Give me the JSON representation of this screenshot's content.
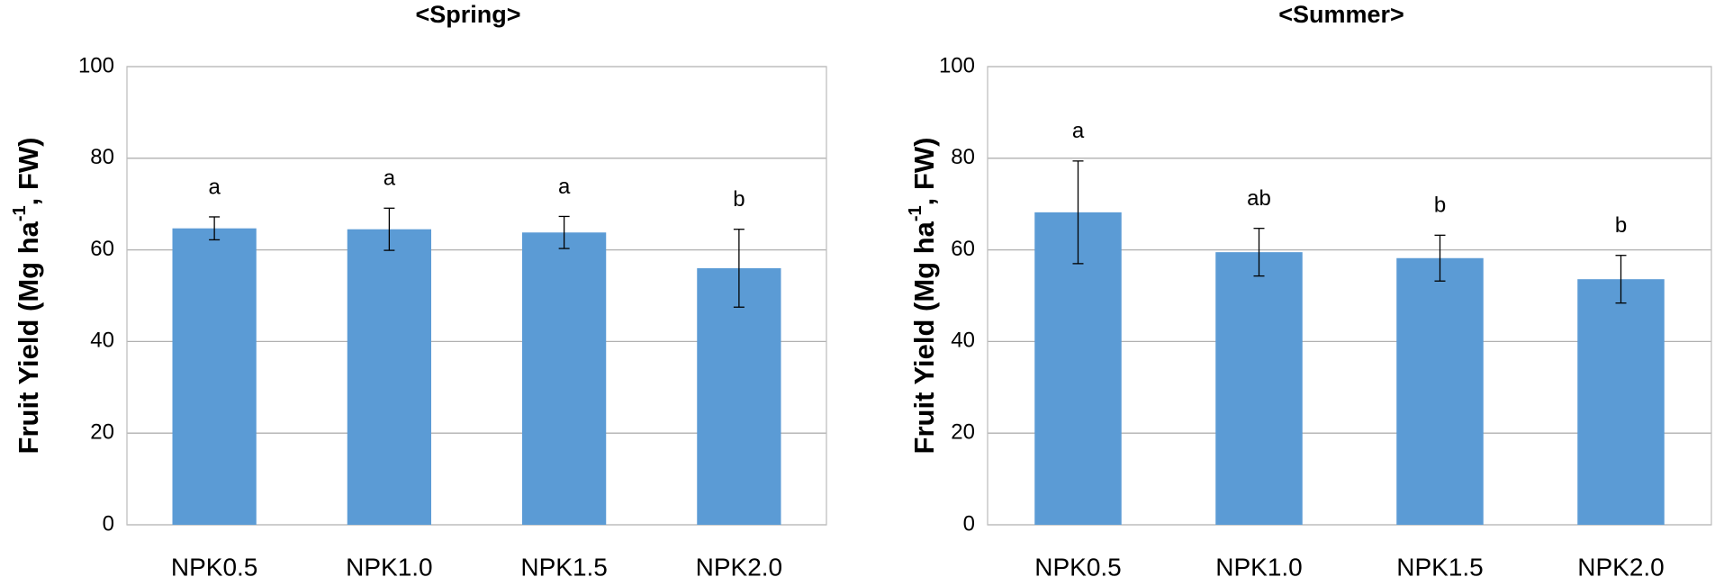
{
  "chart_data": [
    {
      "type": "bar",
      "title": "<Spring>",
      "y_label": [
        "Fruit Yield (Mg ha",
        "-1",
        ", FW)"
      ],
      "categories": [
        "NPK0.5",
        "NPK1.0",
        "NPK1.5",
        "NPK2.0"
      ],
      "values": [
        64.7,
        64.5,
        63.8,
        56.0
      ],
      "errors": [
        2.5,
        4.6,
        3.5,
        8.5
      ],
      "annotations": [
        "a",
        "a",
        "a",
        "b"
      ],
      "color": "#5b9bd5",
      "ylim": [
        0,
        100
      ],
      "yticks": [
        0,
        20,
        40,
        60,
        80,
        100
      ],
      "grid": true
    },
    {
      "type": "bar",
      "title": "<Summer>",
      "y_label": [
        "Fruit Yield (Mg ha",
        "-1",
        ", FW)"
      ],
      "categories": [
        "NPK0.5",
        "NPK1.0",
        "NPK1.5",
        "NPK2.0"
      ],
      "values": [
        68.2,
        59.5,
        58.2,
        53.6
      ],
      "errors": [
        11.2,
        5.2,
        5.0,
        5.2
      ],
      "annotations": [
        "a",
        "ab",
        "b",
        "b"
      ],
      "color": "#5b9bd5",
      "ylim": [
        0,
        100
      ],
      "yticks": [
        0,
        20,
        40,
        60,
        80,
        100
      ],
      "grid": true
    }
  ]
}
